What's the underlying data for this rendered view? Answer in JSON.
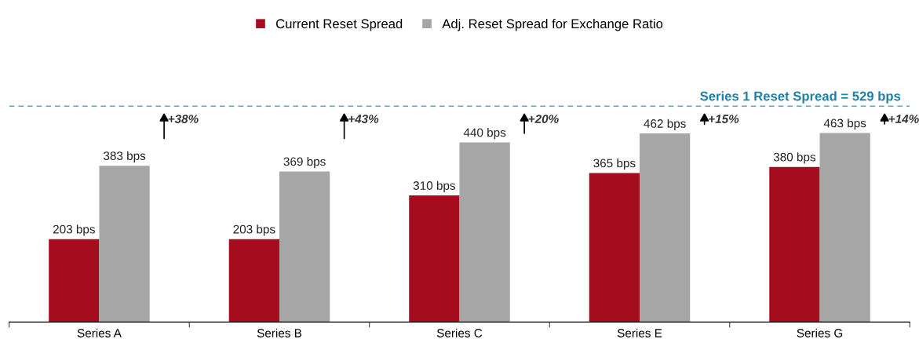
{
  "chart_data": {
    "type": "bar",
    "categories": [
      "Series A",
      "Series B",
      "Series C",
      "Series E",
      "Series G"
    ],
    "series": [
      {
        "name": "Current Reset Spread",
        "color": "#a50d1e",
        "values": [
          203,
          203,
          310,
          365,
          380
        ],
        "value_labels": [
          "203 bps",
          "203 bps",
          "310 bps",
          "365 bps",
          "380 bps"
        ]
      },
      {
        "name": "Adj. Reset Spread for Exchange Ratio",
        "color": "#a6a6a6",
        "values": [
          383,
          369,
          440,
          462,
          463
        ],
        "value_labels": [
          "383 bps",
          "369 bps",
          "440 bps",
          "462 bps",
          "463 bps"
        ]
      }
    ],
    "tick_labels": "x",
    "legend": "top",
    "grid": false,
    "ref_lines": [
      {
        "axis": "y",
        "value": 529,
        "label": "Series 1 Reset Spread = 529 bps",
        "color": "#4bacc6",
        "line_style": "dashed"
      }
    ],
    "annotations": [
      "+38%",
      "+43%",
      "+20%",
      "+15%",
      "+14%"
    ]
  }
}
